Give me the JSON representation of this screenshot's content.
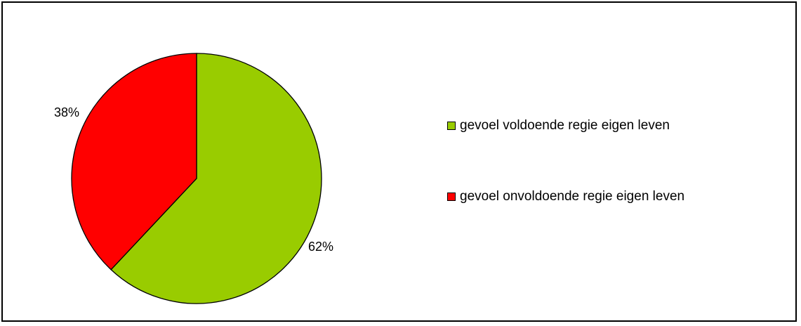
{
  "chart_data": {
    "type": "pie",
    "title": "",
    "slices": [
      {
        "label": "gevoel voldoende regie eigen leven",
        "value": 62,
        "display": "62%",
        "color": "#99cc00"
      },
      {
        "label": "gevoel onvoldoende regie eigen leven",
        "value": 38,
        "display": "38%",
        "color": "#ff0000"
      }
    ],
    "legend_position": "right"
  }
}
